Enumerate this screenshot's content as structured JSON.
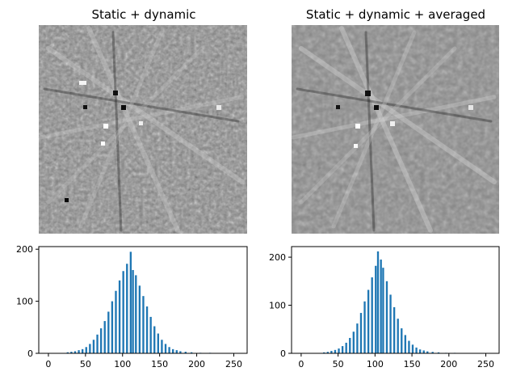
{
  "colors": {
    "bar": "#1f77b4",
    "axis": "#000000",
    "background": "#ffffff"
  },
  "chart_data": [
    {
      "type": "heatmap",
      "title": "Static + dynamic",
      "colormap": "gray",
      "grid": false,
      "axes_visible": false,
      "description_of_values": "Noisy grayscale diffraction-like pattern, approximately 60x60 pixels"
    },
    {
      "type": "heatmap",
      "title": "Static + dynamic + averaged",
      "colormap": "gray",
      "grid": false,
      "axes_visible": false,
      "description_of_values": "Smoother grayscale diffraction-like pattern, approximately 60x60 pixels"
    },
    {
      "type": "bar",
      "title": "",
      "xlabel": "",
      "ylabel": "",
      "xlim": [
        -13,
        268
      ],
      "ylim": [
        0,
        205
      ],
      "xticks": [
        0,
        50,
        100,
        150,
        200,
        250
      ],
      "yticks": [
        0,
        100,
        200
      ],
      "bin_width": 2.56,
      "histogram_center": 108,
      "peak_value": 195,
      "bins": [
        [
          26,
          2
        ],
        [
          31,
          3
        ],
        [
          36,
          4
        ],
        [
          41,
          6
        ],
        [
          46,
          8
        ],
        [
          51,
          12
        ],
        [
          56,
          18
        ],
        [
          61,
          26
        ],
        [
          66,
          36
        ],
        [
          71,
          48
        ],
        [
          76,
          62
        ],
        [
          81,
          80
        ],
        [
          86,
          100
        ],
        [
          91,
          120
        ],
        [
          96,
          140
        ],
        [
          101,
          158
        ],
        [
          106,
          172
        ],
        [
          111,
          195
        ],
        [
          114,
          160
        ],
        [
          118,
          150
        ],
        [
          123,
          130
        ],
        [
          128,
          110
        ],
        [
          133,
          90
        ],
        [
          138,
          70
        ],
        [
          143,
          52
        ],
        [
          148,
          38
        ],
        [
          153,
          26
        ],
        [
          158,
          18
        ],
        [
          163,
          12
        ],
        [
          168,
          8
        ],
        [
          173,
          6
        ],
        [
          178,
          4
        ],
        [
          185,
          3
        ],
        [
          193,
          2
        ],
        [
          205,
          1
        ],
        [
          218,
          1
        ]
      ]
    },
    {
      "type": "bar",
      "title": "",
      "xlabel": "",
      "ylabel": "",
      "xlim": [
        -13,
        268
      ],
      "ylim": [
        0,
        222
      ],
      "xticks": [
        0,
        50,
        100,
        150,
        200,
        250
      ],
      "yticks": [
        0,
        100,
        200
      ],
      "bin_width": 2.56,
      "histogram_center": 104,
      "peak_value": 212,
      "bins": [
        [
          31,
          2
        ],
        [
          36,
          3
        ],
        [
          41,
          5
        ],
        [
          46,
          7
        ],
        [
          51,
          10
        ],
        [
          56,
          15
        ],
        [
          61,
          22
        ],
        [
          66,
          32
        ],
        [
          71,
          45
        ],
        [
          76,
          62
        ],
        [
          81,
          84
        ],
        [
          86,
          108
        ],
        [
          91,
          132
        ],
        [
          96,
          158
        ],
        [
          101,
          182
        ],
        [
          104,
          212
        ],
        [
          108,
          195
        ],
        [
          111,
          178
        ],
        [
          116,
          150
        ],
        [
          121,
          122
        ],
        [
          126,
          96
        ],
        [
          131,
          72
        ],
        [
          136,
          52
        ],
        [
          141,
          38
        ],
        [
          146,
          26
        ],
        [
          151,
          18
        ],
        [
          156,
          12
        ],
        [
          161,
          8
        ],
        [
          166,
          6
        ],
        [
          171,
          4
        ],
        [
          178,
          3
        ],
        [
          186,
          2
        ],
        [
          196,
          1
        ],
        [
          208,
          1
        ]
      ]
    }
  ]
}
